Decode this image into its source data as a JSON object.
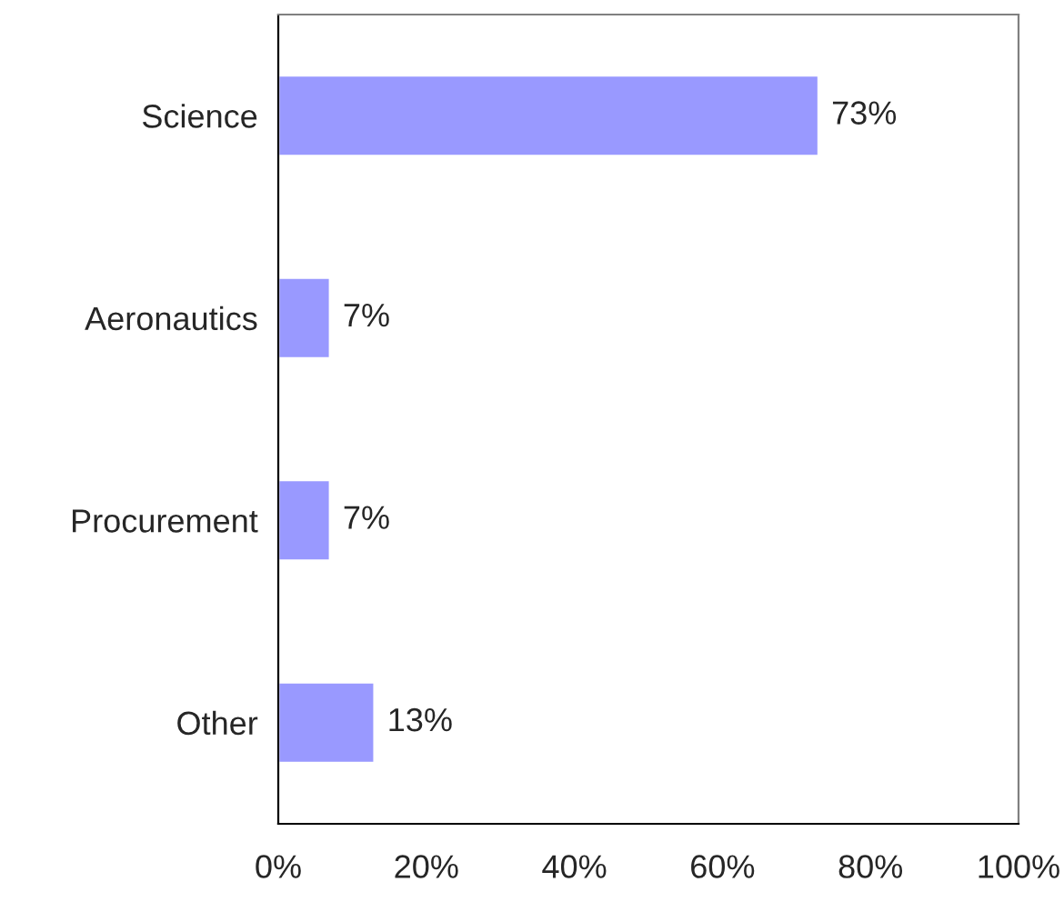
{
  "chart_data": {
    "type": "bar",
    "orientation": "horizontal",
    "categories": [
      "Science",
      "Aeronautics",
      "Procurement",
      "Other"
    ],
    "values": [
      73,
      7,
      7,
      13
    ],
    "color": "#9999ff",
    "value_labels": [
      "73%",
      "7%",
      "7%",
      "13%"
    ],
    "xlim": [
      0,
      100
    ],
    "xticks": [
      {
        "value": 0,
        "label": "0%"
      },
      {
        "value": 20,
        "label": "20%"
      },
      {
        "value": 40,
        "label": "40%"
      },
      {
        "value": 60,
        "label": "60%"
      },
      {
        "value": 80,
        "label": "80%"
      },
      {
        "value": 100,
        "label": "100%"
      }
    ],
    "grid": false,
    "legend": false
  }
}
